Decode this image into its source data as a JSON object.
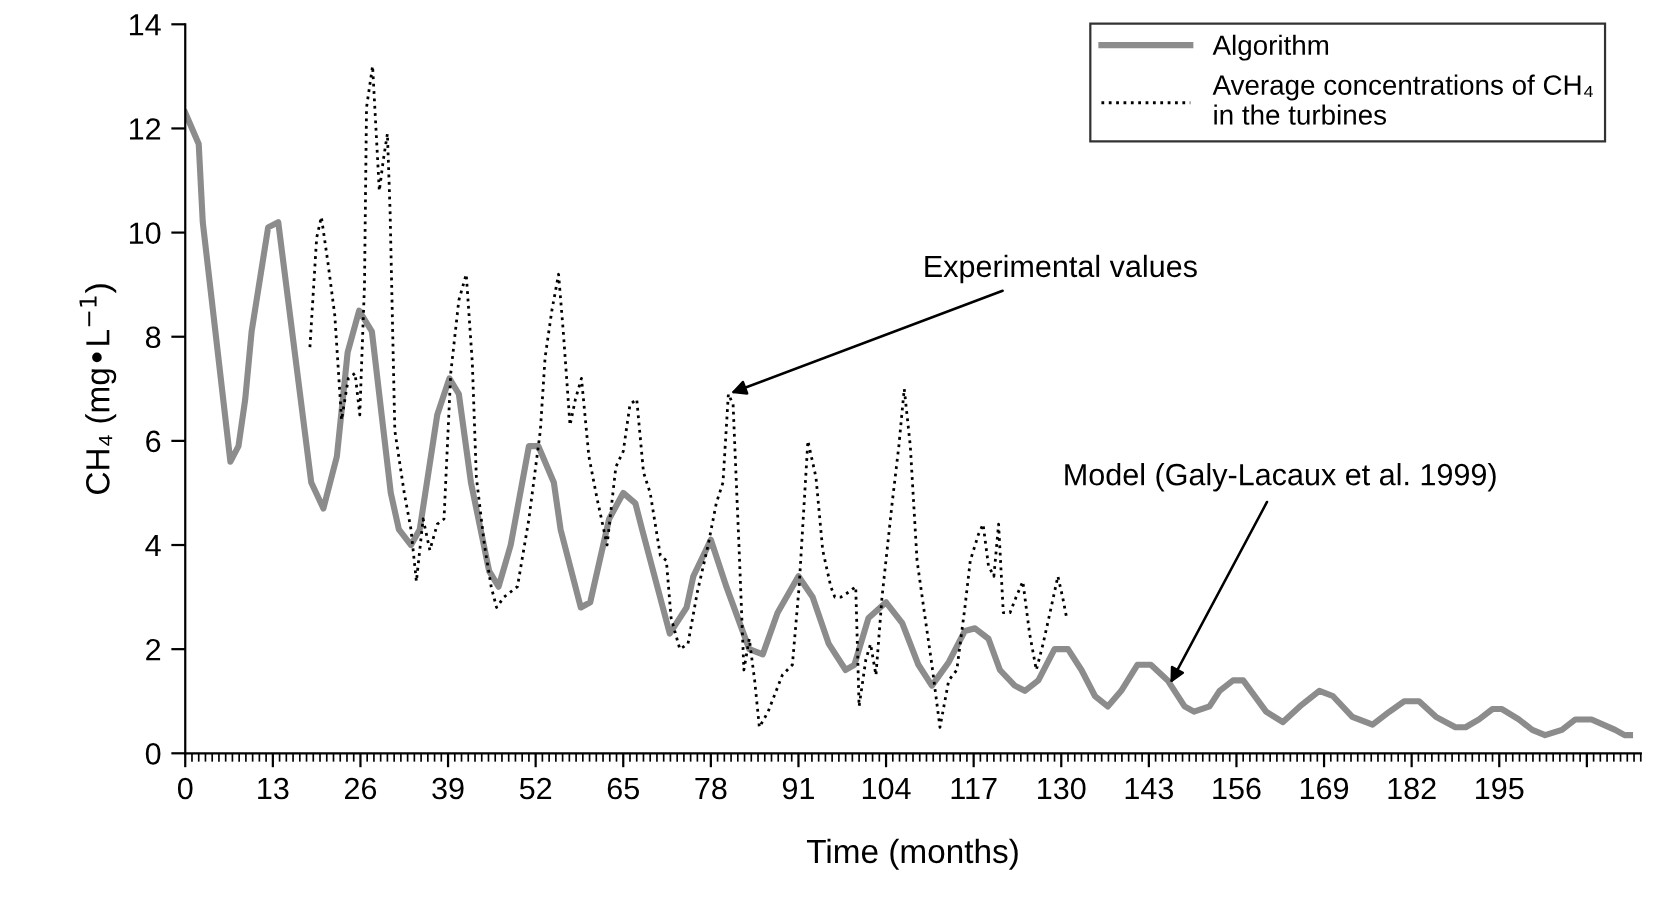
{
  "chart_data": {
    "type": "line",
    "xlabel": "Time (months)",
    "ylabel": "CH₄ (mg•L$^{−1}$)",
    "xlim": [
      0,
      216
    ],
    "ylim": [
      0,
      14
    ],
    "xticks": [
      0,
      13,
      26,
      39,
      52,
      65,
      78,
      91,
      104,
      117,
      130,
      143,
      156,
      169,
      182,
      195,
      {
        "value": 208,
        "label": null
      }
    ],
    "yticks": [
      0,
      2,
      4,
      6,
      8,
      10,
      12,
      14
    ],
    "grid": false,
    "legend": "top right",
    "marker": "none",
    "series": [
      {
        "name": "Algorithm",
        "color": "#8c8c8c",
        "line_style": "solid",
        "x": [
          0,
          2,
          2.6,
          6.7,
          7.9,
          8.9,
          9.85,
          12.3,
          13.8,
          18.7,
          20.5,
          22.5,
          24.1,
          25.8,
          27.7,
          30.5,
          31.7,
          33.5,
          34.8,
          37.4,
          39.2,
          40.6,
          42.4,
          45.1,
          46.5,
          48.3,
          51,
          52.4,
          54.7,
          55.7,
          58.7,
          60.1,
          62.9,
          65,
          66.8,
          67.8,
          71.9,
          72.9,
          74.4,
          75.4,
          78,
          80.3,
          83.7,
          85.7,
          87.9,
          91,
          93.1,
          95.5,
          98,
          99.3,
          101.4,
          104,
          106.4,
          108.8,
          110.8,
          113.3,
          115.7,
          117.2,
          119.2,
          120.9,
          123.1,
          124.6,
          126.6,
          129,
          131,
          133,
          135,
          136.9,
          138.9,
          141.3,
          143.3,
          145.8,
          148.3,
          149.7,
          152,
          153.5,
          155.5,
          157,
          160.4,
          162.9,
          165.4,
          168.3,
          170.3,
          173.2,
          176.2,
          178.7,
          180.9,
          183.1,
          185.6,
          188.5,
          190,
          192,
          194,
          195.4,
          197.9,
          199.9,
          201.8,
          204.3,
          206.3,
          208.7,
          212.2,
          213.6,
          214.4
        ],
        "values": [
          12.3,
          11.7,
          10.2,
          5.6,
          5.9,
          6.8,
          8.1,
          10.1,
          10.2,
          5.2,
          4.7,
          5.7,
          7.7,
          8.5,
          8.1,
          5.0,
          4.3,
          4.0,
          4.3,
          6.5,
          7.2,
          6.9,
          5.2,
          3.5,
          3.2,
          4.0,
          5.9,
          5.9,
          5.2,
          4.3,
          2.8,
          2.9,
          4.5,
          5.0,
          4.8,
          4.3,
          2.3,
          2.5,
          2.8,
          3.4,
          4.1,
          3.2,
          2.0,
          1.9,
          2.7,
          3.4,
          3.0,
          2.1,
          1.6,
          1.7,
          2.6,
          2.9,
          2.5,
          1.7,
          1.3,
          1.75,
          2.35,
          2.4,
          2.2,
          1.6,
          1.3,
          1.2,
          1.4,
          2.0,
          2.0,
          1.6,
          1.1,
          0.9,
          1.2,
          1.7,
          1.7,
          1.4,
          0.9,
          0.8,
          0.9,
          1.2,
          1.4,
          1.4,
          0.8,
          0.6,
          0.9,
          1.2,
          1.1,
          0.7,
          0.55,
          0.8,
          1.0,
          1.0,
          0.7,
          0.5,
          0.5,
          0.65,
          0.85,
          0.85,
          0.65,
          0.45,
          0.35,
          0.45,
          0.65,
          0.65,
          0.45,
          0.35,
          0.35
        ]
      },
      {
        "name": "Average concentrations of CH₄\nin the turbines",
        "color": "#000000",
        "line_style": "dotted",
        "x": [
          18.5,
          19.5,
          20.2,
          21.2,
          22.2,
          23.2,
          24.2,
          25.2,
          25.9,
          26.6,
          26.9,
          27.8,
          28.8,
          29.4,
          30,
          30.4,
          31.1,
          32.5,
          33.5,
          34.3,
          35.3,
          36.3,
          37.4,
          38.4,
          39.4,
          40.6,
          41.7,
          42.6,
          43.2,
          44.4,
          45.4,
          46.2,
          47.3,
          49.3,
          51,
          52.7,
          53.4,
          54.4,
          55.4,
          56.1,
          57.1,
          57.9,
          58.8,
          59.9,
          61.1,
          62.6,
          63.9,
          65,
          66,
          67,
          68,
          69,
          70.5,
          71.4,
          72.1,
          73.4,
          74.6,
          76,
          77.6,
          78.8,
          79.8,
          80.6,
          81.3,
          82.2,
          82.9,
          83.7,
          84.5,
          85.2,
          86.5,
          87.7,
          88.6,
          90.1,
          91.1,
          92.4,
          93.6,
          94.6,
          95.8,
          96.4,
          97.3,
          98.5,
          99.5,
          100,
          101,
          101.7,
          102.5,
          103.4,
          104.9,
          105.9,
          106.7,
          107.6,
          108.6,
          109.8,
          110.8,
          112,
          113.3,
          114.5,
          115.7,
          116.5,
          117.7,
          118.4,
          119.2,
          120,
          120.7,
          121.4,
          122.4,
          123.3,
          124.3,
          125.3,
          126.3,
          127.3,
          128.5,
          129.5,
          130.2,
          130.8
        ],
        "values": [
          7.8,
          9.9,
          10.3,
          9.4,
          8.4,
          6.4,
          7.2,
          7.3,
          6.5,
          9.0,
          12.4,
          13.2,
          10.8,
          11.4,
          11.9,
          10.4,
          6.2,
          5.0,
          4.3,
          3.3,
          4.5,
          3.9,
          4.4,
          4.5,
          7.3,
          8.7,
          9.2,
          7.5,
          5.3,
          4.0,
          3.2,
          2.8,
          3.0,
          3.2,
          4.5,
          6.2,
          7.6,
          8.5,
          9.2,
          8.1,
          6.3,
          6.8,
          7.2,
          5.7,
          4.9,
          4.0,
          5.5,
          5.8,
          6.7,
          6.8,
          5.4,
          5.0,
          3.8,
          3.7,
          2.6,
          2.0,
          2.1,
          3.1,
          4.0,
          4.8,
          5.2,
          6.9,
          6.7,
          3.9,
          1.6,
          2.2,
          1.4,
          0.5,
          0.8,
          1.2,
          1.5,
          1.7,
          3.2,
          6.0,
          5.3,
          3.9,
          3.2,
          3.0,
          3.0,
          3.1,
          3.2,
          0.9,
          1.8,
          2.1,
          1.5,
          3.0,
          4.8,
          5.9,
          7.0,
          5.9,
          3.7,
          2.6,
          1.7,
          0.5,
          1.4,
          1.6,
          2.8,
          3.7,
          4.2,
          4.4,
          3.6,
          3.4,
          4.4,
          2.7,
          2.7,
          3.0,
          3.3,
          2.3,
          1.6,
          2.1,
          2.8,
          3.4,
          3.0,
          2.6
        ]
      }
    ],
    "annotations": [
      {
        "text": "Experimental values",
        "x": 80.6,
        "y": 6.9
      },
      {
        "text": "Model (Galy-Lacaux et al. 1999)",
        "x": 146,
        "y": 1.3
      }
    ]
  }
}
